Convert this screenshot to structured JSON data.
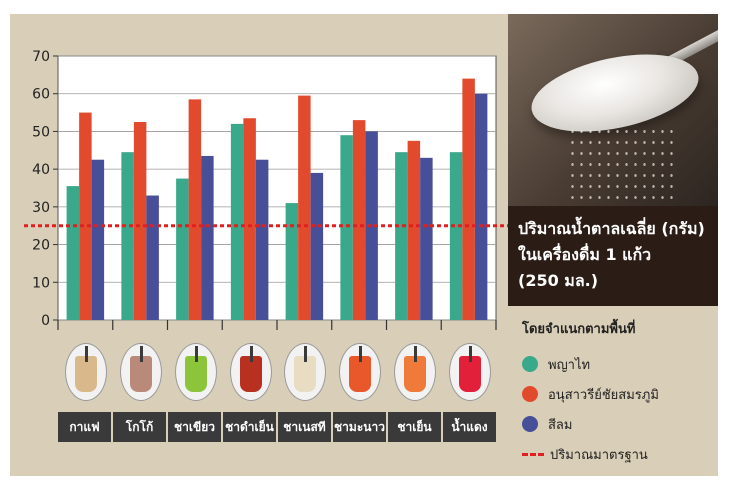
{
  "title_lines": [
    "ปริมาณน้ำตาลเฉลี่ย (กรัม)",
    "ในเครื่องดื่ม 1 แก้ว",
    "(250 มล.)"
  ],
  "legend": {
    "title": "โดยจำแนกตามพื้นที่",
    "standard_label": "ปริมาณมาตรฐาน"
  },
  "colors": {
    "series": [
      "#3aa88a",
      "#e24a2e",
      "#474f99"
    ],
    "standard": "#e02020",
    "drinks": [
      "#d9b98c",
      "#b98a7a",
      "#8cc43a",
      "#b83020",
      "#e8dcc2",
      "#e8582a",
      "#f07a3a",
      "#e2203a"
    ]
  },
  "chart_data": {
    "type": "bar",
    "categories": [
      "กาแฟ",
      "โกโก้",
      "ชาเขียว",
      "ชาดำเย็น",
      "ชาเนสที",
      "ชามะนาว",
      "ชาเย็น",
      "น้ำแดง"
    ],
    "series": [
      {
        "name": "พญาไท",
        "values": [
          35.5,
          44.5,
          37.5,
          52,
          31,
          49,
          44.5,
          44.5
        ]
      },
      {
        "name": "อนุสาวรีย์ชัยสมรภูมิ",
        "values": [
          55,
          52.5,
          58.5,
          53.5,
          59.5,
          53,
          47.5,
          64
        ]
      },
      {
        "name": "สีลม",
        "values": [
          42.5,
          33,
          43.5,
          42.5,
          39,
          50,
          43,
          60
        ]
      }
    ],
    "reference_line": {
      "name": "ปริมาณมาตรฐาน",
      "value": 25
    },
    "ylim": [
      0,
      70
    ],
    "yticks": [
      0,
      10,
      20,
      30,
      40,
      50,
      60,
      70
    ],
    "xlabel": "",
    "ylabel": "",
    "grid": true,
    "legend_position": "right"
  }
}
